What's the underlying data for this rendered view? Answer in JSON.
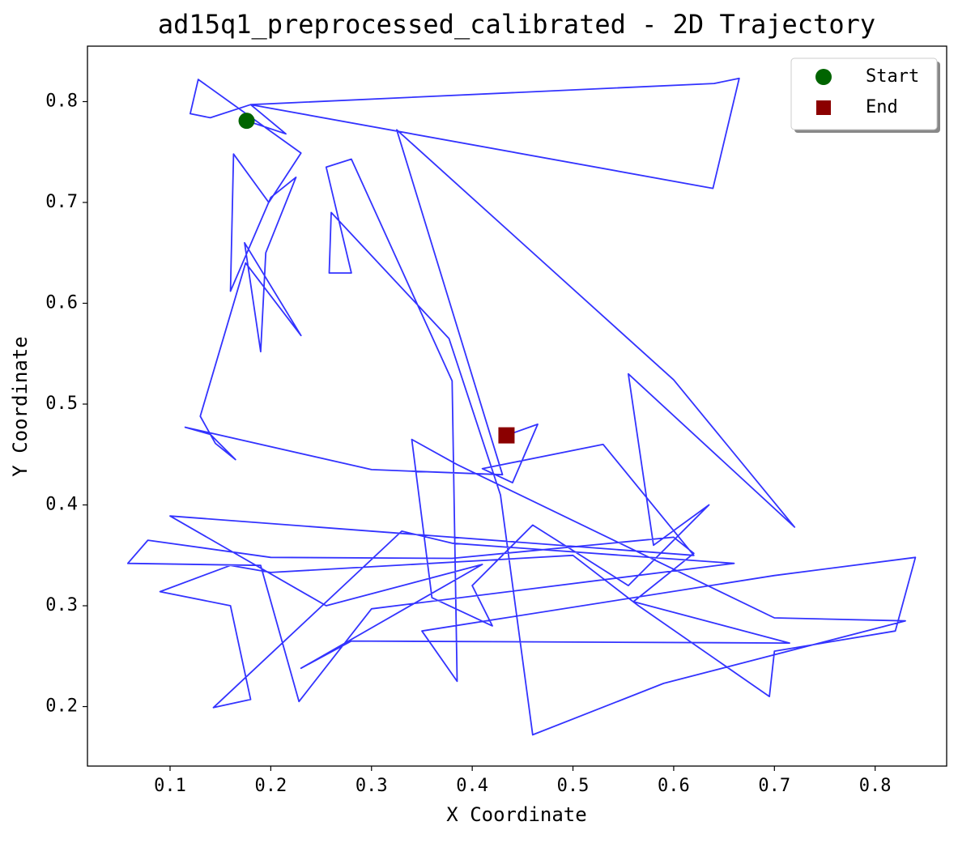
{
  "chart_data": {
    "type": "line",
    "title": "ad15q1_preprocessed_calibrated - 2D Trajectory",
    "xlabel": "X Coordinate",
    "ylabel": "Y Coordinate",
    "xlim": [
      0.018,
      0.871
    ],
    "ylim": [
      0.141,
      0.855
    ],
    "xticks": [
      0.1,
      0.2,
      0.3,
      0.4,
      0.5,
      0.6,
      0.7,
      0.8
    ],
    "yticks": [
      0.2,
      0.3,
      0.4,
      0.5,
      0.6,
      0.7,
      0.8
    ],
    "grid": false,
    "legend": "upper right",
    "x": [
      0.176,
      0.215,
      0.18,
      0.64,
      0.665,
      0.639,
      0.18,
      0.14,
      0.12,
      0.128,
      0.23,
      0.198,
      0.163,
      0.16,
      0.2,
      0.225,
      0.195,
      0.19,
      0.174,
      0.23,
      0.175,
      0.13,
      0.145,
      0.165,
      0.14,
      0.115,
      0.3,
      0.43,
      0.325,
      0.6,
      0.72,
      0.555,
      0.58,
      0.635,
      0.555,
      0.46,
      0.4,
      0.42,
      0.36,
      0.34,
      0.385,
      0.7,
      0.83,
      0.59,
      0.46,
      0.428,
      0.377,
      0.26,
      0.258,
      0.28,
      0.255,
      0.28,
      0.38,
      0.385,
      0.35,
      0.7,
      0.84,
      0.82,
      0.7,
      0.695,
      0.565,
      0.5,
      0.2,
      0.16,
      0.09,
      0.16,
      0.18,
      0.143,
      0.33,
      0.38,
      0.66,
      0.3,
      0.228,
      0.19,
      0.058,
      0.078,
      0.2,
      0.38,
      0.6,
      0.62,
      0.56,
      0.715,
      0.28,
      0.23,
      0.41,
      0.255,
      0.1,
      0.62,
      0.53,
      0.41,
      0.44,
      0.465,
      0.434
    ],
    "series": [
      {
        "color": "#3333ff",
        "values": [
          0.781,
          0.768,
          0.797,
          0.818,
          0.823,
          0.714,
          0.797,
          0.784,
          0.788,
          0.822,
          0.749,
          0.7,
          0.748,
          0.612,
          0.705,
          0.725,
          0.65,
          0.552,
          0.66,
          0.568,
          0.64,
          0.488,
          0.461,
          0.445,
          0.47,
          0.477,
          0.435,
          0.43,
          0.772,
          0.524,
          0.378,
          0.53,
          0.36,
          0.4,
          0.32,
          0.38,
          0.32,
          0.28,
          0.308,
          0.465,
          0.44,
          0.288,
          0.285,
          0.223,
          0.172,
          0.41,
          0.565,
          0.69,
          0.63,
          0.63,
          0.735,
          0.743,
          0.523,
          0.225,
          0.275,
          0.33,
          0.348,
          0.275,
          0.255,
          0.21,
          0.3,
          0.35,
          0.333,
          0.34,
          0.314,
          0.3,
          0.207,
          0.199,
          0.374,
          0.362,
          0.342,
          0.297,
          0.205,
          0.34,
          0.342,
          0.365,
          0.348,
          0.347,
          0.368,
          0.352,
          0.304,
          0.263,
          0.265,
          0.238,
          0.341,
          0.3,
          0.389,
          0.35,
          0.46,
          0.436,
          0.422,
          0.48,
          0.469
        ]
      }
    ],
    "markers": [
      {
        "name": "Start",
        "x": 0.176,
        "y": 0.781,
        "color": "#006400",
        "shape": "circle"
      },
      {
        "name": "End",
        "x": 0.434,
        "y": 0.469,
        "color": "#8b0000",
        "shape": "square"
      }
    ]
  }
}
